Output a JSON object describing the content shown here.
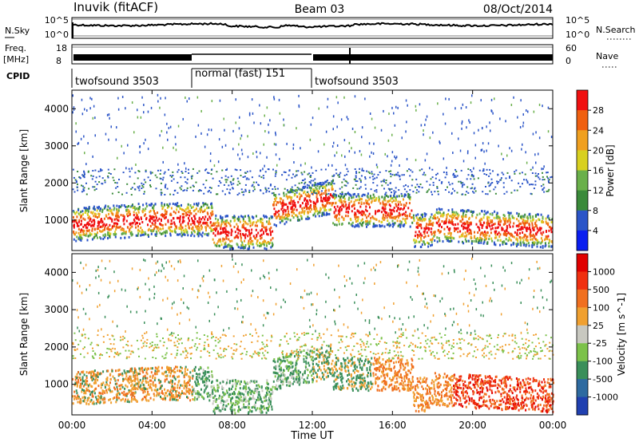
{
  "header": {
    "station": "Inuvik (fitACF)",
    "beam": "Beam 03",
    "date": "08/Oct/2014"
  },
  "panels": {
    "nsky": {
      "left_label": "N.Sky",
      "left_ticks": [
        "10^5",
        "10^0"
      ],
      "right_label": "N.Search",
      "right_ticks": [
        "10^5",
        "10^0"
      ]
    },
    "freq": {
      "left_label_1": "Freq.",
      "left_label_2": "[MHz]",
      "left_ticks": [
        "18",
        "8"
      ],
      "right_label": "Nave",
      "right_ticks": [
        "60",
        "0"
      ]
    },
    "cpid": {
      "label": "CPID",
      "segments": [
        "twofsound 3503",
        "normal (fast) 151",
        "twofsound 3503"
      ]
    }
  },
  "chart_data": [
    {
      "type": "heatmap",
      "title": "",
      "xlabel": "Time UT",
      "ylabel": "Slant Range [km]",
      "xlim": [
        "00:00",
        "00:00"
      ],
      "x_ticks": [
        "00:00",
        "04:00",
        "08:00",
        "12:00",
        "16:00",
        "20:00",
        "00:00"
      ],
      "ylim": [
        180,
        4500
      ],
      "y_ticks": [
        1000,
        2000,
        3000,
        4000
      ],
      "colorbar": {
        "label": "Power [dB]",
        "ticks": [
          "4",
          "8",
          "12",
          "16",
          "20",
          "24",
          "28"
        ],
        "colors": [
          "#0a1ef0",
          "#2b55c8",
          "#3a8a3a",
          "#6ab04a",
          "#d8d020",
          "#f0a020",
          "#f06010",
          "#f01010"
        ]
      }
    },
    {
      "type": "heatmap",
      "title": "",
      "xlabel": "Time UT",
      "ylabel": "Slant Range [km]",
      "xlim": [
        "00:00",
        "00:00"
      ],
      "x_ticks": [
        "00:00",
        "04:00",
        "08:00",
        "12:00",
        "16:00",
        "20:00",
        "00:00"
      ],
      "ylim": [
        180,
        4500
      ],
      "y_ticks": [
        1000,
        2000,
        3000,
        4000
      ],
      "colorbar": {
        "label": "Velocity [m s^-1]",
        "ticks": [
          "1000",
          "500",
          "100",
          "25",
          "-25",
          "-100",
          "-500",
          "-1000"
        ],
        "colors": [
          "#2040b0",
          "#2e6aa0",
          "#3a8f5a",
          "#7cc24a",
          "#c8c8c0",
          "#f0a030",
          "#f07020",
          "#f03010",
          "#e00000"
        ]
      }
    }
  ]
}
